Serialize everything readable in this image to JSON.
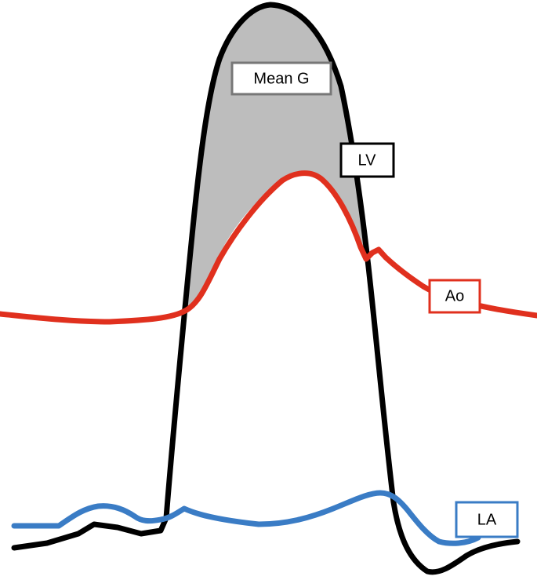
{
  "labels": {
    "mean_gradient": "Mean G",
    "lv": "LV",
    "ao": "Ao",
    "la": "LA"
  }
}
